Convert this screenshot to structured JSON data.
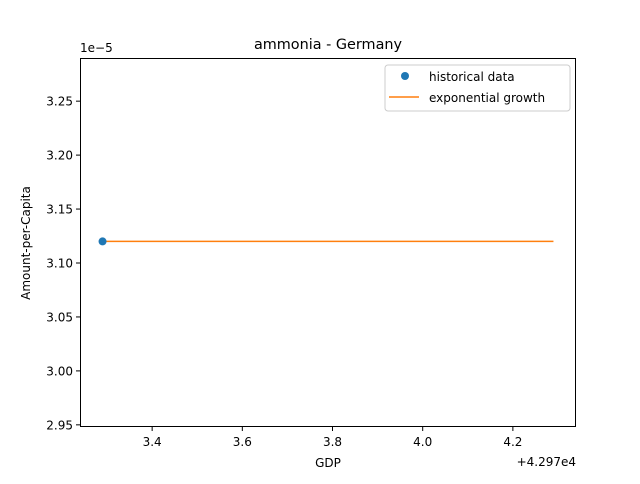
{
  "chart_data": {
    "type": "line",
    "title": "ammonia - Germany",
    "xlabel": "GDP",
    "ylabel": "Amount-per-Capita",
    "x_offset_text": "+4.297e4",
    "y_scale_text": "1e−5",
    "xlim": [
      42973.24,
      42974.34
    ],
    "ylim": [
      2.948,
      3.29
    ],
    "x_ticks": [
      3.4,
      3.6,
      3.8,
      4.0,
      4.2
    ],
    "x_tick_labels": [
      "3.4",
      "3.6",
      "3.8",
      "4.0",
      "4.2"
    ],
    "y_ticks": [
      2.95,
      3.0,
      3.05,
      3.1,
      3.15,
      3.2,
      3.25
    ],
    "y_tick_labels": [
      "2.95",
      "3.00",
      "3.05",
      "3.10",
      "3.15",
      "3.20",
      "3.25"
    ],
    "series": [
      {
        "name": "historical data",
        "kind": "scatter",
        "color": "#1f77b4",
        "points": [
          {
            "x": 42973.29,
            "y": 3.12
          }
        ]
      },
      {
        "name": "exponential growth",
        "kind": "line",
        "color": "#ff7f0e",
        "points": [
          {
            "x": 42973.29,
            "y": 3.12
          },
          {
            "x": 42974.29,
            "y": 3.12
          }
        ]
      }
    ],
    "grid": false,
    "legend_position": "upper right"
  }
}
